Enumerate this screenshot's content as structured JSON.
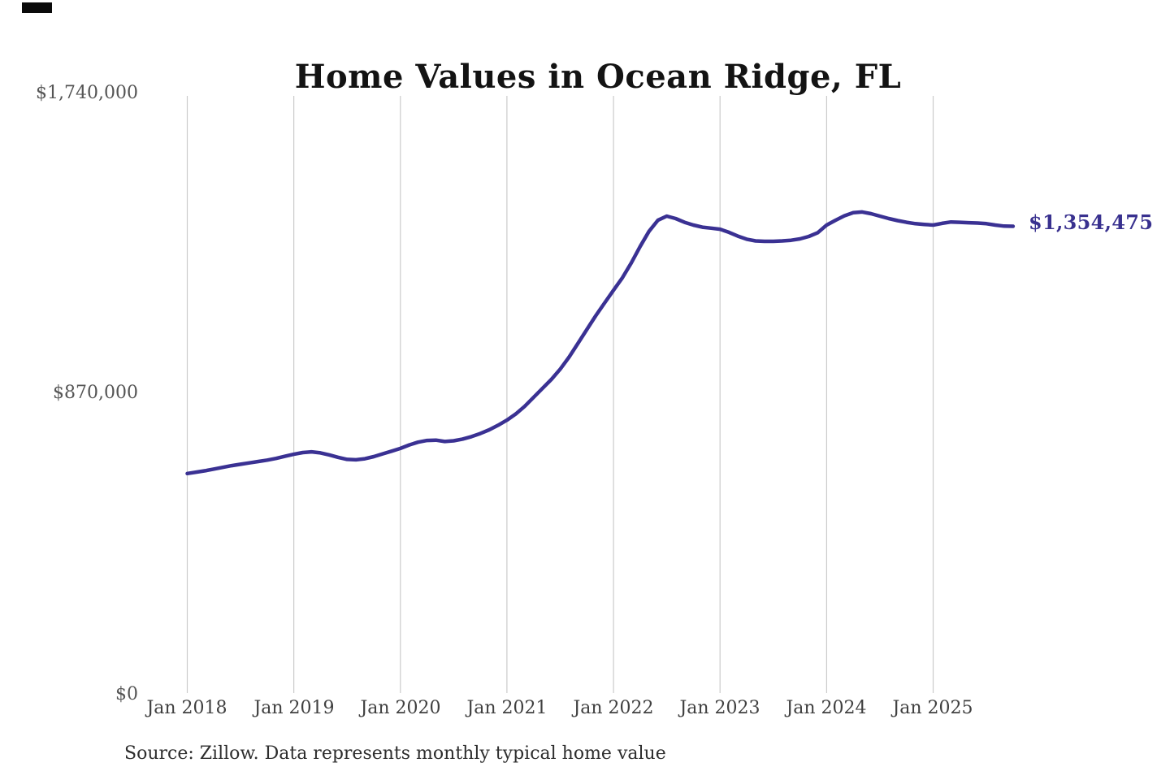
{
  "chart_data": {
    "type": "line",
    "title": "Home Values in Ocean Ridge, FL",
    "series_name": "Monthly typical home value",
    "frequency": "monthly",
    "x_start": "Jan 2018",
    "x_end": "Oct 2025",
    "values": [
      637000,
      641000,
      645000,
      650000,
      655000,
      660000,
      664000,
      668000,
      672000,
      676000,
      681000,
      687000,
      693000,
      698000,
      700000,
      697000,
      691000,
      684000,
      678000,
      677000,
      680000,
      686000,
      694000,
      702000,
      710000,
      720000,
      728000,
      733000,
      734000,
      730000,
      732000,
      737000,
      744000,
      753000,
      764000,
      777000,
      792000,
      810000,
      832000,
      858000,
      884000,
      910000,
      940000,
      975000,
      1015000,
      1055000,
      1095000,
      1132000,
      1169000,
      1205000,
      1248000,
      1296000,
      1340000,
      1372000,
      1384000,
      1377000,
      1366000,
      1358000,
      1352000,
      1349000,
      1346000,
      1337000,
      1326000,
      1317000,
      1312000,
      1311000,
      1311000,
      1312000,
      1314000,
      1318000,
      1325000,
      1336000,
      1358000,
      1372000,
      1385000,
      1394000,
      1396000,
      1391000,
      1384000,
      1377000,
      1371000,
      1366000,
      1362000,
      1360000,
      1358000,
      1363000,
      1367000,
      1366000,
      1365000,
      1364000,
      1362000,
      1358000,
      1355000,
      1354475
    ],
    "x_ticks": [
      "Jan 2018",
      "Jan 2019",
      "Jan 2020",
      "Jan 2021",
      "Jan 2022",
      "Jan 2023",
      "Jan 2024",
      "Jan 2025"
    ],
    "y_ticks_topdown": [
      "$1,740,000",
      "$870,000",
      "$0"
    ],
    "ylim": [
      0,
      1740000
    ],
    "end_label": "$1,354,475",
    "source": "Source: Zillow. Data represents monthly typical home value",
    "grid": "vertical-only",
    "legend": "none",
    "colors": {
      "line": "#3a3193",
      "end_label": "#39318f",
      "grid": "#cbcbcb",
      "title": "#131313",
      "y_axis_label": "#555555",
      "x_axis_label": "#404040",
      "source": "#2d2d2d"
    }
  }
}
